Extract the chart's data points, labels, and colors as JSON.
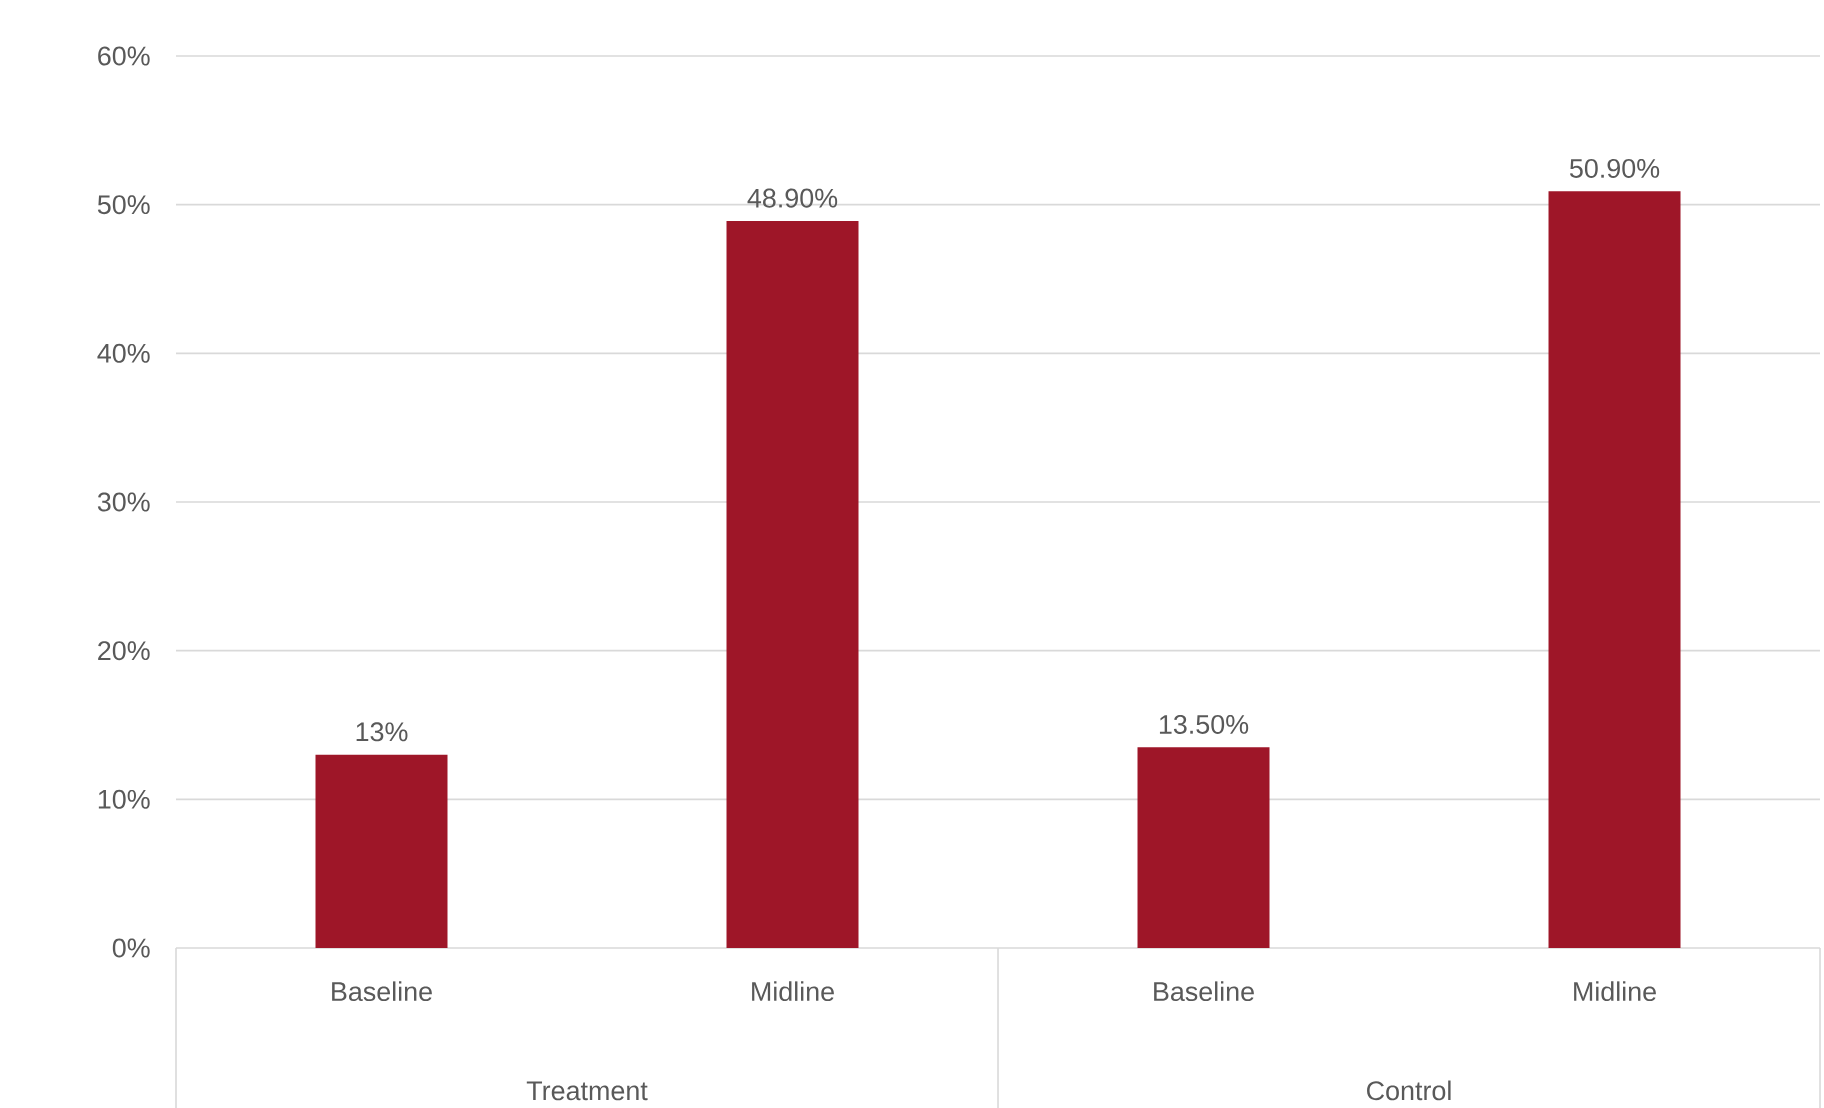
{
  "chart_data": {
    "type": "bar",
    "categories": [
      "Baseline",
      "Midline",
      "Baseline",
      "Midline"
    ],
    "values": [
      13,
      48.9,
      13.5,
      50.9
    ],
    "value_labels": [
      "13%",
      "48.90%",
      "13.50%",
      "50.90%"
    ],
    "color": "#9e1628",
    "ylim": [
      0,
      60
    ],
    "yticks": [
      {
        "value": 0,
        "label": "0%"
      },
      {
        "value": 10,
        "label": "10%"
      },
      {
        "value": 20,
        "label": "20%"
      },
      {
        "value": 30,
        "label": "30%"
      },
      {
        "value": 40,
        "label": "40%"
      },
      {
        "value": 50,
        "label": "50%"
      },
      {
        "value": 60,
        "label": "60%"
      }
    ],
    "grid": "y",
    "annotations": [
      "Treatment",
      "Control"
    ]
  }
}
